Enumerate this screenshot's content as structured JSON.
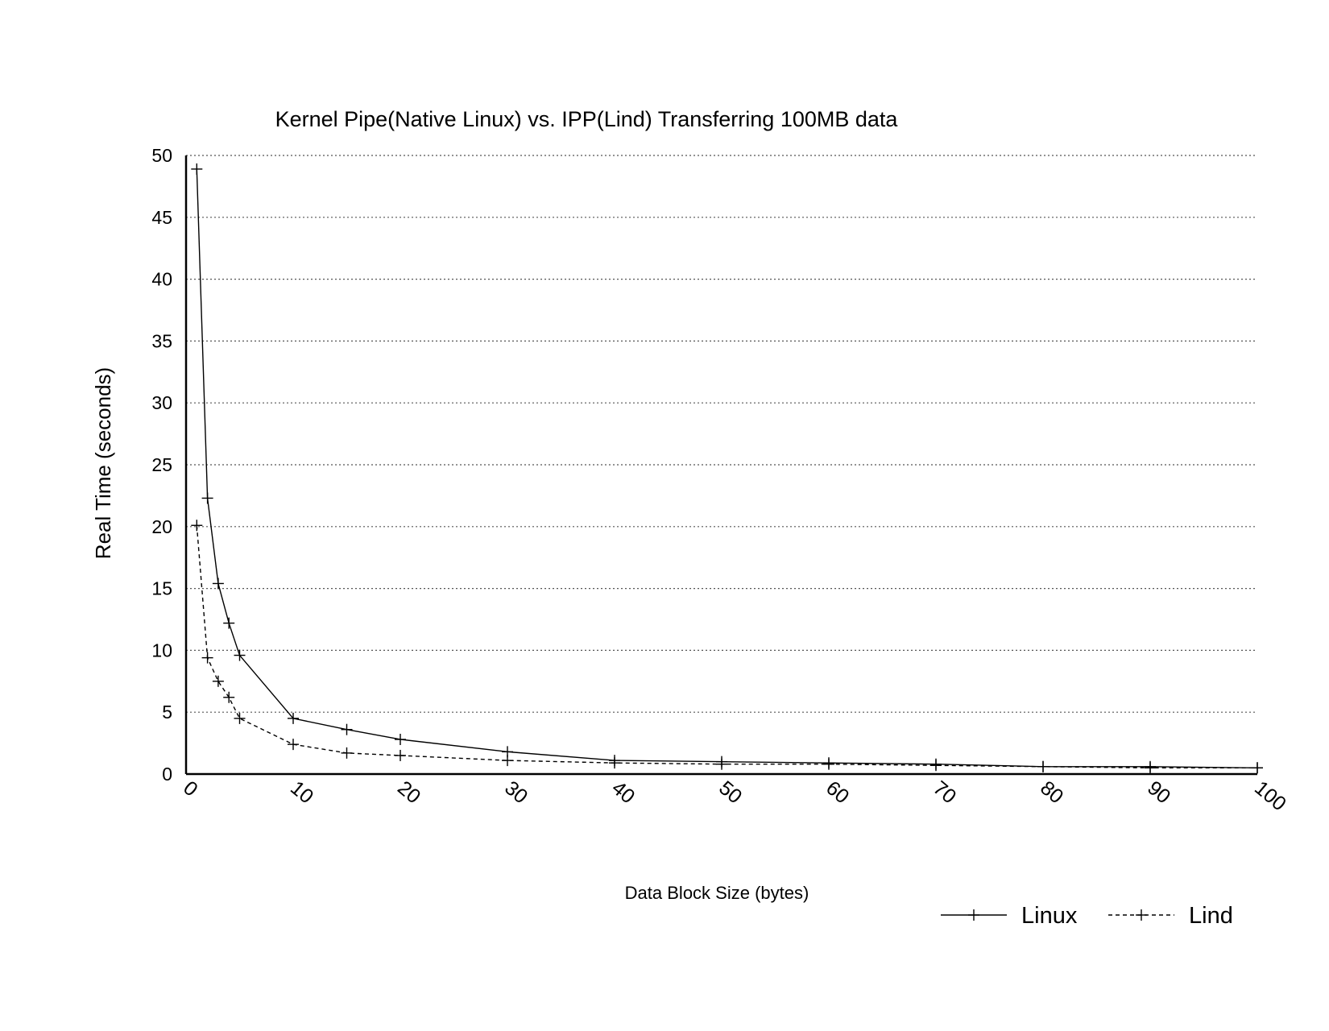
{
  "chart_data": {
    "type": "line",
    "title": "Kernel Pipe(Native Linux) vs. IPP(Lind) Transferring 100MB data",
    "xlabel": "Data Block Size (bytes)",
    "ylabel": "Real Time (seconds)",
    "xlim": [
      0,
      100
    ],
    "ylim": [
      0,
      50
    ],
    "x_ticks": [
      0,
      10,
      20,
      30,
      40,
      50,
      60,
      70,
      80,
      90,
      100
    ],
    "y_ticks": [
      0,
      5,
      10,
      15,
      20,
      25,
      30,
      35,
      40,
      45,
      50
    ],
    "grid": "horizontal dotted",
    "legend_position": "bottom-right",
    "x": [
      1,
      2,
      3,
      4,
      5,
      10,
      15,
      20,
      30,
      40,
      50,
      60,
      70,
      80,
      90,
      100
    ],
    "series": [
      {
        "name": "Linux",
        "line_style": "solid",
        "marker": "plus",
        "values": [
          48.9,
          22.3,
          15.4,
          12.2,
          9.6,
          4.5,
          3.6,
          2.8,
          1.8,
          1.1,
          1.0,
          0.9,
          0.8,
          0.6,
          0.6,
          0.5
        ]
      },
      {
        "name": "Lind",
        "line_style": "dashed",
        "marker": "plus",
        "values": [
          20.1,
          9.4,
          7.5,
          6.2,
          4.5,
          2.4,
          1.7,
          1.5,
          1.1,
          0.9,
          0.8,
          0.8,
          0.7,
          0.6,
          0.5,
          0.5
        ]
      }
    ]
  }
}
